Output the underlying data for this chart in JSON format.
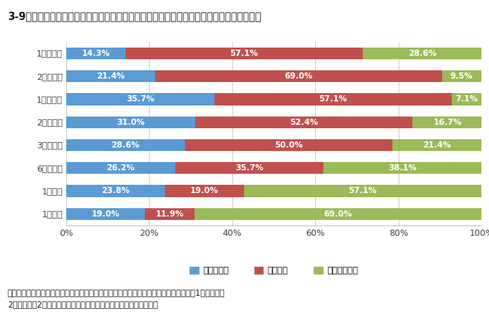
{
  "title": "3-9　ホームステージング実施後成約するまでの平均期間であてはまる項目を選択ください",
  "categories": [
    "1週間以内",
    "2週間以内",
    "1ヶ月以内",
    "2ヶ月以内",
    "3ヶ月以内",
    "6ヶ月以内",
    "1年以内",
    "1年以上"
  ],
  "series": [
    {
      "name": "非常に多い",
      "color": "#5B9BD5",
      "values": [
        14.3,
        21.4,
        35.7,
        31.0,
        28.6,
        26.2,
        23.8,
        19.0
      ]
    },
    {
      "name": "時々ある",
      "color": "#C0504D",
      "values": [
        57.1,
        69.0,
        57.1,
        52.4,
        50.0,
        35.7,
        19.0,
        11.9
      ]
    },
    {
      "name": "まったくない",
      "color": "#9BBB59",
      "values": [
        28.6,
        9.5,
        7.1,
        16.7,
        21.4,
        38.1,
        57.1,
        69.0
      ]
    }
  ],
  "footnote1": "前回の調査結果とほぼ同じ数値となっている。「非常に多い」「時々ある」を含めると1ヶ月以内、",
  "footnote2": "2週間以内、2ヶ月の順で成約しているという回答が一番多かった。",
  "background_color": "#FFFFFF",
  "title_fontsize": 10.5,
  "label_fontsize": 8.5,
  "tick_fontsize": 9,
  "legend_fontsize": 9,
  "footnote_fontsize": 8.5
}
